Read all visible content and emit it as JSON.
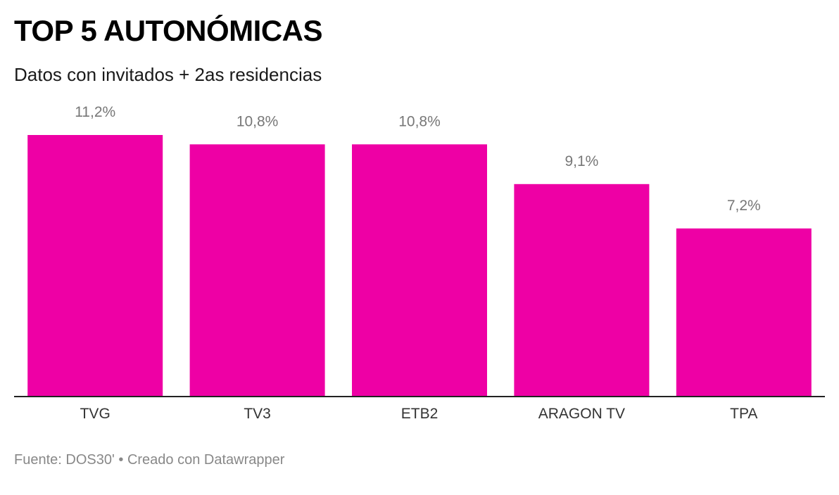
{
  "header": {
    "title": "TOP 5 AUTONÓMICAS",
    "subtitle": "Datos con invitados + 2as residencias"
  },
  "footer": {
    "source_label": "Fuente:",
    "source": "DOS30'",
    "separator": "•",
    "credit": "Creado con Datawrapper"
  },
  "colors": {
    "bar": "#ee00a5",
    "value_label": "#777777",
    "category_label": "#333333",
    "baseline": "#222222"
  },
  "chart_data": {
    "type": "bar",
    "title": "TOP 5 AUTONÓMICAS",
    "subtitle": "Datos con invitados + 2as residencias",
    "categories": [
      "TVG",
      "TV3",
      "ETB2",
      "ARAGON TV",
      "TPA"
    ],
    "values": [
      11.2,
      10.8,
      10.8,
      9.1,
      7.2
    ],
    "value_labels": [
      "11,2%",
      "10,8%",
      "10,8%",
      "9,1%",
      "7,2%"
    ],
    "unit": "%",
    "ylim": [
      0,
      11.2
    ],
    "grid": false,
    "legend": "none"
  }
}
